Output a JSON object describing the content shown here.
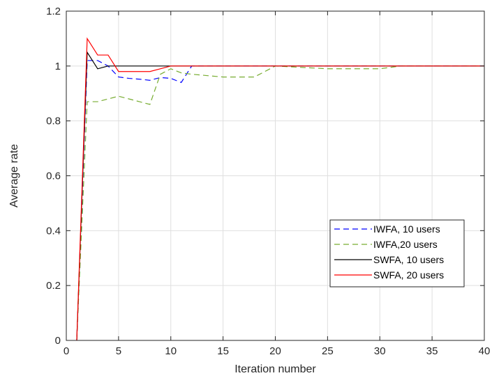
{
  "chart_data": {
    "type": "line",
    "xlabel": "Iteration number",
    "ylabel": "Average rate",
    "xlim": [
      0,
      40
    ],
    "ylim": [
      0,
      1.2
    ],
    "xticks": [
      0,
      5,
      10,
      15,
      20,
      25,
      30,
      35,
      40
    ],
    "xtick_labels": [
      "0",
      "5",
      "10",
      "15",
      "20",
      "25",
      "30",
      "35",
      "40"
    ],
    "yticks": [
      0,
      0.2,
      0.4,
      0.6,
      0.8,
      1.0,
      1.2
    ],
    "ytick_labels": [
      "0",
      "0.2",
      "0.4",
      "0.6",
      "0.8",
      "1",
      "1.2"
    ],
    "grid": true,
    "legend_position": "lower-right",
    "series": [
      {
        "name": "IWFA, 10 users",
        "color": "#0000ff",
        "style": "dashed",
        "x": [
          1,
          2,
          3,
          4,
          5,
          6,
          7,
          8,
          9,
          10,
          11,
          12,
          40
        ],
        "y": [
          0,
          1.02,
          1.02,
          1.0,
          0.96,
          0.955,
          0.952,
          0.948,
          0.958,
          0.955,
          0.94,
          1.0,
          1.0
        ]
      },
      {
        "name": "IWFA,20 users",
        "color": "#77ac30",
        "style": "dashed",
        "x": [
          1,
          2,
          3,
          4,
          5,
          6,
          7,
          8,
          9,
          10,
          11,
          12,
          15,
          18,
          20,
          25,
          30,
          32,
          40
        ],
        "y": [
          0,
          0.87,
          0.87,
          0.88,
          0.89,
          0.88,
          0.87,
          0.86,
          0.97,
          0.99,
          0.975,
          0.97,
          0.96,
          0.96,
          1.0,
          0.99,
          0.99,
          1.0,
          1.0
        ]
      },
      {
        "name": "SWFA, 10 users",
        "color": "#000000",
        "style": "solid",
        "x": [
          1,
          2,
          3,
          4,
          5,
          10,
          40
        ],
        "y": [
          0,
          1.05,
          0.99,
          1.0,
          1.0,
          1.0,
          1.0
        ]
      },
      {
        "name": "SWFA, 20 users",
        "color": "#ff0000",
        "style": "solid",
        "x": [
          1,
          2,
          3,
          4,
          5,
          8,
          9,
          10,
          40
        ],
        "y": [
          0,
          1.1,
          1.04,
          1.04,
          0.98,
          0.98,
          0.99,
          1.0,
          1.0
        ]
      }
    ]
  }
}
